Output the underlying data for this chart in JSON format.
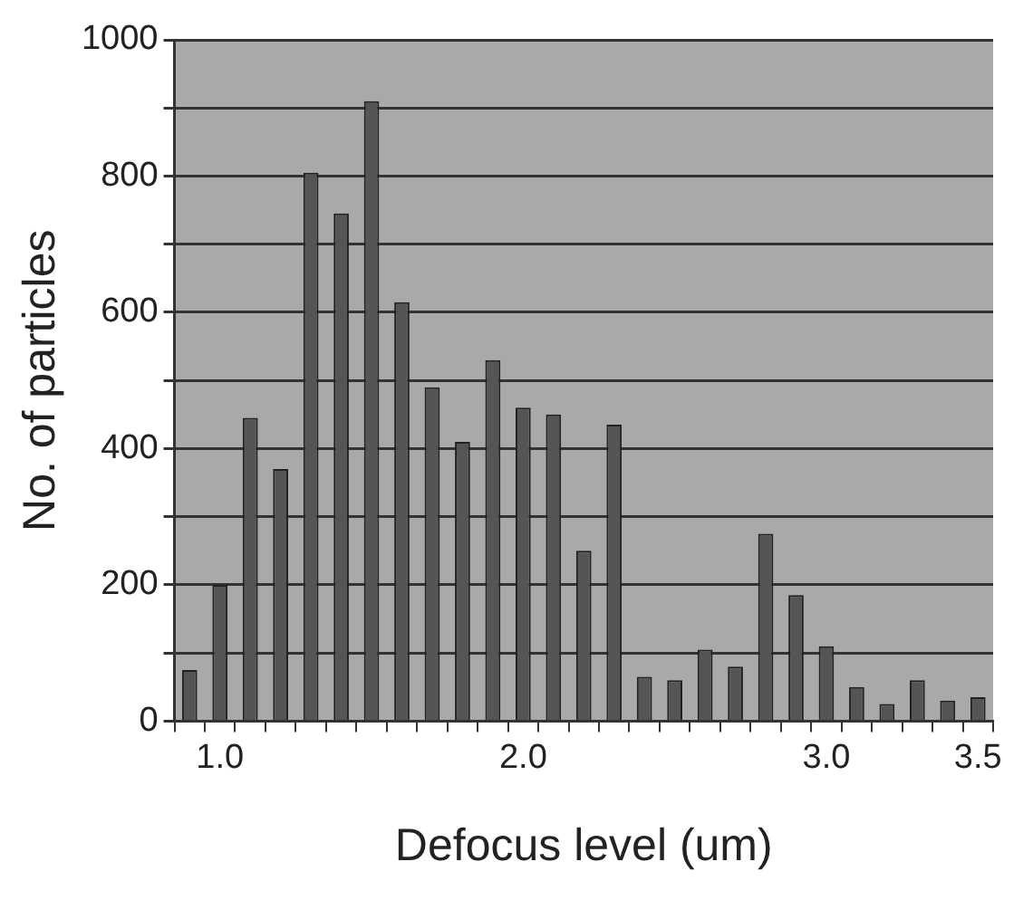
{
  "chart_data": {
    "type": "bar",
    "xlabel": "Defocus level (um)",
    "ylabel": "No. of particles",
    "categories": [
      null,
      "1.0",
      null,
      null,
      null,
      null,
      null,
      null,
      null,
      null,
      null,
      "2.0",
      null,
      null,
      null,
      null,
      null,
      null,
      null,
      null,
      null,
      "3.0",
      null,
      null,
      null,
      null,
      "3.5"
    ],
    "values": [
      75,
      200,
      445,
      370,
      805,
      745,
      910,
      615,
      490,
      410,
      530,
      460,
      450,
      250,
      435,
      65,
      60,
      105,
      80,
      275,
      185,
      110,
      50,
      25,
      60,
      30,
      35
    ],
    "color": "#555555",
    "ylim": [
      0,
      1000
    ],
    "yticks": [
      0,
      {
        "value": 100,
        "label": null
      },
      200,
      {
        "value": 300,
        "label": null
      },
      400,
      {
        "value": 500,
        "label": null
      },
      600,
      {
        "value": 700,
        "label": null
      },
      800,
      {
        "value": 900,
        "label": null
      },
      1000
    ],
    "grid": "y"
  }
}
